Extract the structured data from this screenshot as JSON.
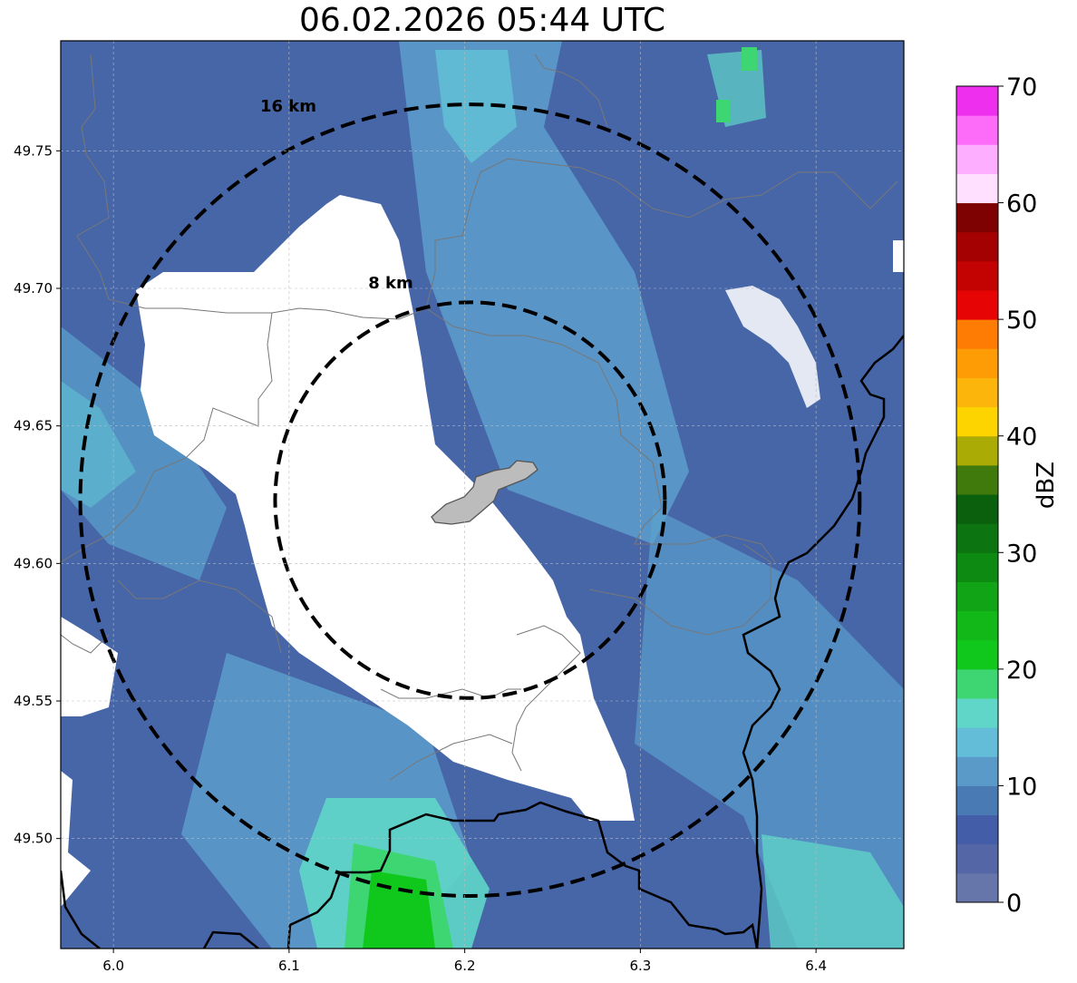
{
  "title": "06.02.2026 05:44 UTC",
  "map": {
    "lon_range": [
      5.97,
      6.45
    ],
    "lat_range": [
      49.46,
      49.79
    ],
    "center": {
      "lon": 6.203,
      "lat": 49.623
    },
    "rings": [
      {
        "label": "16 km",
        "radius_km": 16
      },
      {
        "label": "8 km",
        "radius_km": 8
      }
    ],
    "x_ticks": [
      6.0,
      6.1,
      6.2,
      6.3,
      6.4
    ],
    "x_tick_labels": [
      "6.0",
      "6.1",
      "6.2",
      "6.3",
      "6.4"
    ],
    "y_ticks": [
      49.5,
      49.55,
      49.6,
      49.65,
      49.7,
      49.75
    ],
    "y_tick_labels": [
      "49.50",
      "49.55",
      "49.60",
      "49.65",
      "49.70",
      "49.75"
    ],
    "no_echo_color": "#ffffff",
    "gridlines": true
  },
  "colorbar": {
    "label": "dBZ",
    "min": 0,
    "max": 70,
    "ticks": [
      0,
      10,
      20,
      30,
      40,
      50,
      60,
      70
    ],
    "tick_labels": [
      "0",
      "10",
      "20",
      "30",
      "40",
      "50",
      "60",
      "70"
    ],
    "colors": [
      "#6675aa",
      "#5566a6",
      "#445da8",
      "#4a7ab4",
      "#5a9ac8",
      "#63bcd8",
      "#5fd6c8",
      "#3dd672",
      "#10c81c",
      "#12b818",
      "#11a416",
      "#0d8a12",
      "#0c7410",
      "#0a600c",
      "#407a0c",
      "#aaac05",
      "#fed400",
      "#fcb50a",
      "#fd9c04",
      "#fe7b04",
      "#e70404",
      "#c30202",
      "#a40202",
      "#7f0202",
      "#ffe0fe",
      "#feaefe",
      "#fd6cf8",
      "#ee30ee"
    ]
  }
}
